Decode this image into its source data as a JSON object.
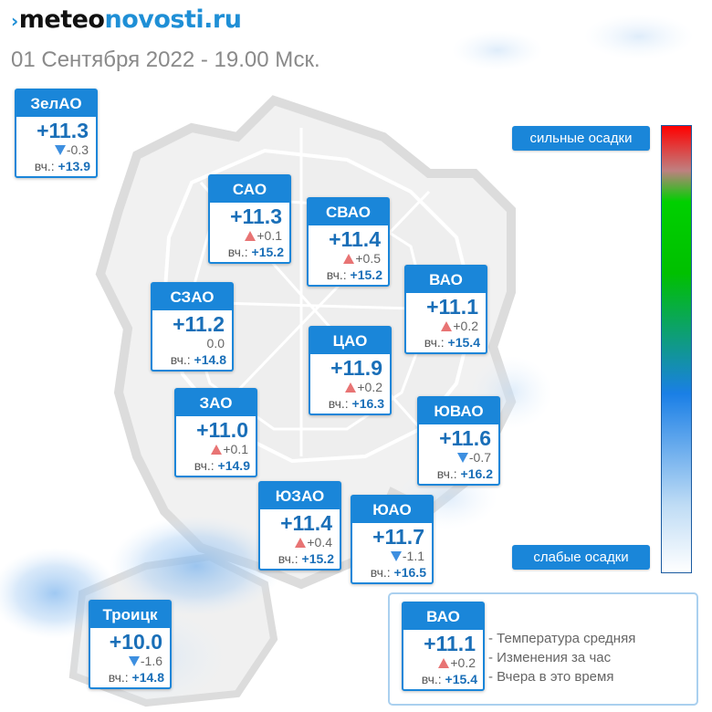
{
  "logo": {
    "dark": "meteo",
    "accent": "novosti.ru"
  },
  "date_line": "01 Сентября 2022 - 19.00 Мск.",
  "yesterday_prefix": "вч.:",
  "districts": [
    {
      "name": "ЗелАО",
      "temp": "+11.3",
      "trend": "down",
      "change": "-0.3",
      "yesterday": "+13.9"
    },
    {
      "name": "САО",
      "temp": "+11.3",
      "trend": "up",
      "change": "+0.1",
      "yesterday": "+15.2"
    },
    {
      "name": "СВАО",
      "temp": "+11.4",
      "trend": "up",
      "change": "+0.5",
      "yesterday": "+15.2"
    },
    {
      "name": "ВАО",
      "temp": "+11.1",
      "trend": "up",
      "change": "+0.2",
      "yesterday": "+15.4"
    },
    {
      "name": "СЗАО",
      "temp": "+11.2",
      "trend": "none",
      "change": "0.0",
      "yesterday": "+14.8"
    },
    {
      "name": "ЦАО",
      "temp": "+11.9",
      "trend": "up",
      "change": "+0.2",
      "yesterday": "+16.3"
    },
    {
      "name": "ЗАО",
      "temp": "+11.0",
      "trend": "up",
      "change": "+0.1",
      "yesterday": "+14.9"
    },
    {
      "name": "ЮВАО",
      "temp": "+11.6",
      "trend": "down",
      "change": "-0.7",
      "yesterday": "+16.2"
    },
    {
      "name": "ЮЗАО",
      "temp": "+11.4",
      "trend": "up",
      "change": "+0.4",
      "yesterday": "+15.2"
    },
    {
      "name": "ЮАО",
      "temp": "+11.7",
      "trend": "down",
      "change": "-1.1",
      "yesterday": "+16.5"
    },
    {
      "name": "Троицк",
      "temp": "+10.0",
      "trend": "down",
      "change": "-1.6",
      "yesterday": "+14.8"
    }
  ],
  "scale": {
    "top": "сильные осадки",
    "bottom": "слабые осадки"
  },
  "legend": {
    "sample": {
      "name": "ВАО",
      "temp": "+11.1",
      "trend": "up",
      "change": "+0.2",
      "yesterday": "+15.4"
    },
    "lines": [
      "- Температура средняя",
      "- Изменения за час",
      "- Вчера в это время"
    ]
  },
  "colors": {
    "accent": "#1a86d9",
    "up": "#e87474",
    "down": "#3d8fe0",
    "temp_text": "#1a6fb8"
  }
}
